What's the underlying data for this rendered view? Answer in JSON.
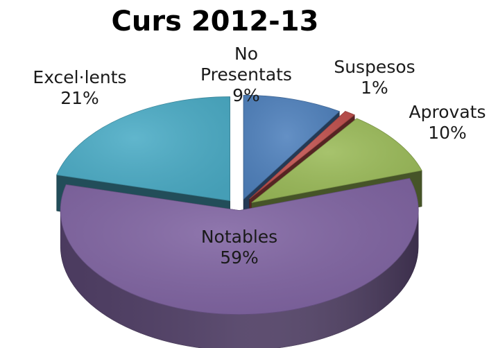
{
  "chart_data": {
    "type": "pie",
    "title": "Curs 2012-13",
    "three_d": true,
    "exploded": true,
    "legend": "none",
    "slices": [
      {
        "name": "No Presentats",
        "label_lines": [
          "No",
          "Presentats"
        ],
        "value": 9,
        "pct_label": "9%",
        "color": "#4f81bd"
      },
      {
        "name": "Suspesos",
        "label_lines": [
          "Suspesos"
        ],
        "value": 1,
        "pct_label": "1%",
        "color": "#c0504d"
      },
      {
        "name": "Aprovats",
        "label_lines": [
          "Aprovats"
        ],
        "value": 10,
        "pct_label": "10%",
        "color": "#9bbb59"
      },
      {
        "name": "Notables",
        "label_lines": [
          "Notables"
        ],
        "value": 59,
        "pct_label": "59%",
        "color": "#8064a2"
      },
      {
        "name": "Excel·lents",
        "label_lines": [
          "Excel·lents"
        ],
        "value": 21,
        "pct_label": "21%",
        "color": "#4bacc6"
      }
    ]
  }
}
